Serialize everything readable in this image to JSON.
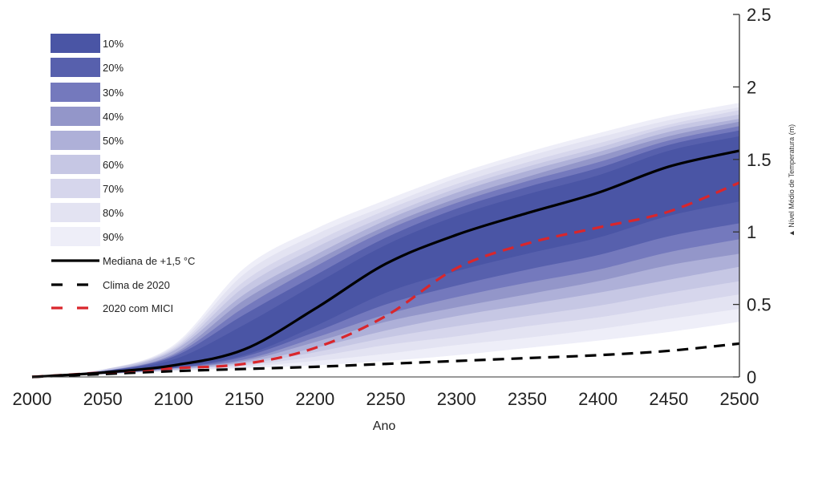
{
  "chart_data": {
    "type": "area",
    "title": "",
    "xlabel": "Ano",
    "ylabel": "▲ Nível Médio de Temperatura (m)",
    "xlim": [
      2000,
      2500
    ],
    "ylim": [
      0,
      2.5
    ],
    "x_ticks": [
      "2000",
      "2050",
      "2100",
      "2150",
      "2200",
      "2250",
      "2300",
      "2350",
      "2400",
      "2450",
      "2500"
    ],
    "y_ticks": [
      "0",
      "0.5",
      "1",
      "1.5",
      "2",
      "2.5"
    ],
    "y_axis_side": "right",
    "grid": false,
    "legend_position": "top-left",
    "x": [
      2000,
      2050,
      2100,
      2150,
      2200,
      2250,
      2300,
      2350,
      2400,
      2450,
      2500
    ],
    "bands": [
      {
        "name": "90%",
        "color": "#eeeef8",
        "lower": [
          0,
          0.02,
          0.04,
          0.06,
          0.08,
          0.11,
          0.15,
          0.2,
          0.25,
          0.31,
          0.38
        ],
        "upper": [
          0,
          0.05,
          0.22,
          0.75,
          1.02,
          1.22,
          1.4,
          1.55,
          1.68,
          1.8,
          1.89
        ]
      },
      {
        "name": "80%",
        "color": "#e3e3f2",
        "lower": [
          0,
          0.02,
          0.04,
          0.07,
          0.11,
          0.16,
          0.22,
          0.27,
          0.33,
          0.4,
          0.47
        ],
        "upper": [
          0,
          0.05,
          0.21,
          0.71,
          0.98,
          1.18,
          1.37,
          1.52,
          1.65,
          1.77,
          1.86
        ]
      },
      {
        "name": "70%",
        "color": "#d6d6ec",
        "lower": [
          0,
          0.02,
          0.05,
          0.08,
          0.14,
          0.22,
          0.28,
          0.35,
          0.41,
          0.49,
          0.57
        ],
        "upper": [
          0,
          0.05,
          0.2,
          0.66,
          0.93,
          1.15,
          1.33,
          1.48,
          1.61,
          1.74,
          1.84
        ]
      },
      {
        "name": "60%",
        "color": "#c6c7e4",
        "lower": [
          0,
          0.02,
          0.05,
          0.09,
          0.17,
          0.27,
          0.35,
          0.42,
          0.49,
          0.58,
          0.66
        ],
        "upper": [
          0,
          0.05,
          0.19,
          0.62,
          0.89,
          1.11,
          1.3,
          1.45,
          1.58,
          1.72,
          1.81
        ]
      },
      {
        "name": "50%",
        "color": "#aeb0d8",
        "lower": [
          0,
          0.02,
          0.05,
          0.1,
          0.2,
          0.32,
          0.42,
          0.5,
          0.58,
          0.67,
          0.76
        ],
        "upper": [
          0,
          0.04,
          0.18,
          0.57,
          0.84,
          1.08,
          1.27,
          1.42,
          1.55,
          1.69,
          1.78
        ]
      },
      {
        "name": "40%",
        "color": "#9396c9",
        "lower": [
          0,
          0.02,
          0.06,
          0.11,
          0.24,
          0.38,
          0.48,
          0.57,
          0.66,
          0.77,
          0.85
        ],
        "upper": [
          0,
          0.04,
          0.16,
          0.53,
          0.8,
          1.04,
          1.23,
          1.38,
          1.52,
          1.66,
          1.76
        ]
      },
      {
        "name": "30%",
        "color": "#7479bd",
        "lower": [
          0,
          0.02,
          0.06,
          0.12,
          0.27,
          0.43,
          0.55,
          0.65,
          0.74,
          0.86,
          0.95
        ],
        "upper": [
          0,
          0.04,
          0.15,
          0.48,
          0.76,
          1.01,
          1.2,
          1.35,
          1.48,
          1.63,
          1.73
        ]
      },
      {
        "name": "20%",
        "color": "#5760ad",
        "lower": [
          0,
          0.03,
          0.06,
          0.14,
          0.31,
          0.5,
          0.63,
          0.74,
          0.84,
          0.97,
          1.06
        ],
        "upper": [
          0,
          0.04,
          0.14,
          0.43,
          0.7,
          0.96,
          1.16,
          1.31,
          1.44,
          1.6,
          1.7
        ]
      },
      {
        "name": "10%",
        "color": "#4a55a5",
        "lower": [
          0,
          0.03,
          0.07,
          0.15,
          0.35,
          0.58,
          0.73,
          0.85,
          0.96,
          1.11,
          1.21
        ],
        "upper": [
          0,
          0.04,
          0.12,
          0.36,
          0.64,
          0.91,
          1.11,
          1.26,
          1.39,
          1.56,
          1.66
        ]
      }
    ],
    "series": [
      {
        "name": "Mediana de +1,5 °C",
        "color": "#000000",
        "style": "solid",
        "values": [
          0,
          0.03,
          0.08,
          0.19,
          0.47,
          0.78,
          0.98,
          1.13,
          1.27,
          1.45,
          1.56
        ]
      },
      {
        "name": "Clima de 2020",
        "color": "#000000",
        "style": "dashed",
        "values": [
          0,
          0.02,
          0.04,
          0.055,
          0.07,
          0.09,
          0.11,
          0.13,
          0.15,
          0.18,
          0.23
        ]
      },
      {
        "name": "2020 com MICI",
        "color": "#d9262c",
        "style": "dashed",
        "values": [
          0,
          0.03,
          0.06,
          0.09,
          0.2,
          0.42,
          0.75,
          0.92,
          1.03,
          1.14,
          1.34
        ]
      }
    ],
    "legend_order": [
      "10%",
      "20%",
      "30%",
      "40%",
      "50%",
      "60%",
      "70%",
      "80%",
      "90%",
      "Mediana de +1,5 °C",
      "Clima de 2020",
      "2020 com MICI"
    ]
  }
}
